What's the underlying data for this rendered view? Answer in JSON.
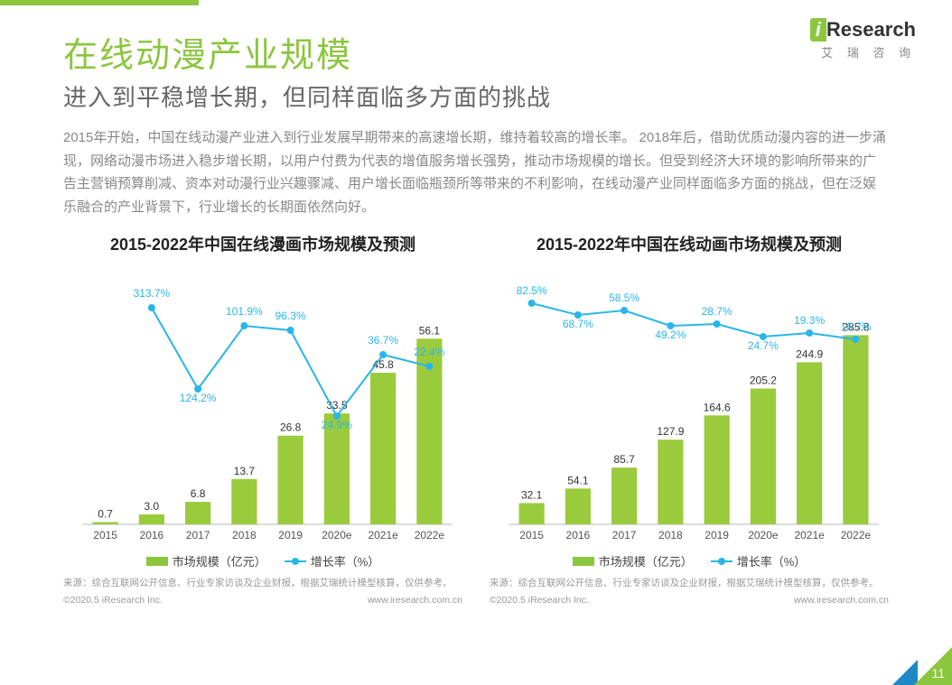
{
  "page": {
    "title": "在线动漫产业规模",
    "subtitle": "进入到平稳增长期，但同样面临多方面的挑战",
    "body": "2015年开始，中国在线动漫产业进入到行业发展早期带来的高速增长期，维持着较高的增长率。 2018年后，借助优质动漫内容的进一步涌现，网络动漫市场进入稳步增长期，以用户付费为代表的增值服务增长强势，推动市场规模的增长。但受到经济大环境的影响所带来的广告主营销预算削减、资本对动漫行业兴趣骤减、用户增长面临瓶颈所等带来的不利影响，在线动漫产业同样面临多方面的挑战，但在泛娱乐融合的产业背景下，行业增长的长期面依然向好。",
    "page_number": "11"
  },
  "logo": {
    "brand": "Research",
    "prefix": "i",
    "sub": "艾 瑞 咨 询"
  },
  "legend": {
    "bar": "市场规模（亿元）",
    "line": "增长率（%）"
  },
  "colors": {
    "bar": "#9acb3c",
    "line": "#29b6e8",
    "axis": "#bbbbbb",
    "title": "#8cc63f",
    "text": "#888888"
  },
  "chart1": {
    "title": "2015-2022年中国在线漫画市场规模及预测",
    "categories": [
      "2015",
      "2016",
      "2017",
      "2018",
      "2019",
      "2020e",
      "2021e",
      "2022e"
    ],
    "values": [
      0.7,
      3.0,
      6.8,
      13.7,
      26.8,
      33.5,
      45.8,
      56.1
    ],
    "growth": [
      null,
      313.7,
      124.2,
      101.9,
      96.3,
      24.9,
      36.7,
      22.4
    ],
    "ymax_bar": 60,
    "growth_line_y": [
      null,
      40,
      130,
      60,
      65,
      160,
      92,
      105
    ],
    "growth_label_dy": [
      0,
      -12,
      14,
      -12,
      -12,
      14,
      -12,
      -12
    ],
    "source": "来源：综合互联网公开信息、行业专家访谈及企业财报，根据艾瑞统计模型核算，仅供参考。",
    "copyright": "©2020.5 iResearch Inc.",
    "url": "www.iresearch.com.cn"
  },
  "chart2": {
    "title": "2015-2022年中国在线动画市场规模及预测",
    "categories": [
      "2015",
      "2016",
      "2017",
      "2018",
      "2019",
      "2020e",
      "2021e",
      "2022e"
    ],
    "values": [
      32.1,
      54.1,
      85.7,
      127.9,
      164.6,
      205.2,
      244.9,
      285.8
    ],
    "growth": [
      82.5,
      68.7,
      58.5,
      49.2,
      28.7,
      24.7,
      19.3,
      16.7
    ],
    "ymax_bar": 300,
    "growth_line_y": [
      35,
      48,
      43,
      60,
      58,
      72,
      68,
      75
    ],
    "growth_label_dy": [
      -10,
      14,
      -10,
      14,
      -10,
      14,
      -10,
      -10
    ],
    "source": "来源：综合互联网公开信息、行业专家访谈及企业财报，根据艾瑞统计模型核算，仅供参考。",
    "copyright": "©2020.5 iResearch Inc.",
    "url": "www.iresearch.com.cn"
  }
}
